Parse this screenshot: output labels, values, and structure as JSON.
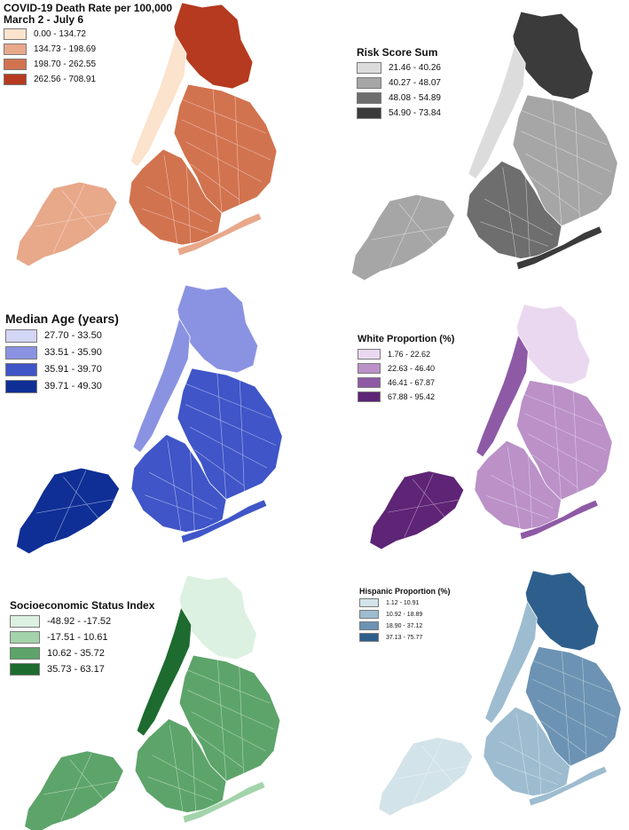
{
  "panels": [
    {
      "id": "death-rate",
      "title": "COVID-19 Death Rate per 100,000\nMarch 2 - July 6",
      "classes": [
        {
          "label": "0.00 - 134.72",
          "color": "#fbe3cd"
        },
        {
          "label": "134.73 - 198.69",
          "color": "#e8a88a"
        },
        {
          "label": "198.70 - 262.55",
          "color": "#d2734f"
        },
        {
          "label": "262.56 - 708.91",
          "color": "#b53a1f"
        }
      ]
    },
    {
      "id": "risk-score",
      "title": "Risk Score Sum",
      "classes": [
        {
          "label": "21.46 - 40.26",
          "color": "#dcdcdc"
        },
        {
          "label": "40.27 - 48.07",
          "color": "#a6a6a6"
        },
        {
          "label": "48.08 - 54.89",
          "color": "#6e6e6e"
        },
        {
          "label": "54.90 - 73.84",
          "color": "#3b3b3b"
        }
      ]
    },
    {
      "id": "median-age",
      "title": "Median Age (years)",
      "classes": [
        {
          "label": "27.70 - 33.50",
          "color": "#d4d6f5"
        },
        {
          "label": "33.51 - 35.90",
          "color": "#8a93e2"
        },
        {
          "label": "35.91 - 39.70",
          "color": "#3f55c8"
        },
        {
          "label": "39.71 - 49.30",
          "color": "#0f2f96"
        }
      ]
    },
    {
      "id": "white-proportion",
      "title": "White Proportion (%)",
      "classes": [
        {
          "label": "1.76 - 22.62",
          "color": "#ead8f0"
        },
        {
          "label": "22.63 - 46.40",
          "color": "#bb91c8"
        },
        {
          "label": "46.41 - 67.87",
          "color": "#8e5aa6"
        },
        {
          "label": "67.88 - 95.42",
          "color": "#5e2476"
        }
      ]
    },
    {
      "id": "ses-index",
      "title": "Socioeconomic Status Index",
      "classes": [
        {
          "label": "-48.92 - -17.52",
          "color": "#dcf1e1"
        },
        {
          "label": "-17.51 - 10.61",
          "color": "#a3d3ab"
        },
        {
          "label": "10.62 - 35.72",
          "color": "#5da46a"
        },
        {
          "label": "35.73 - 63.17",
          "color": "#1e6b2f"
        }
      ]
    },
    {
      "id": "hispanic-proportion",
      "title": "Hispanic Proportion (%)",
      "classes": [
        {
          "label": "1.12 - 10.91",
          "color": "#d3e3ea"
        },
        {
          "label": "10.92 - 18.89",
          "color": "#9dbccf"
        },
        {
          "label": "18.90 - 37.12",
          "color": "#6c93b3"
        },
        {
          "label": "37.13 - 75.77",
          "color": "#2e5f8c"
        }
      ]
    }
  ]
}
